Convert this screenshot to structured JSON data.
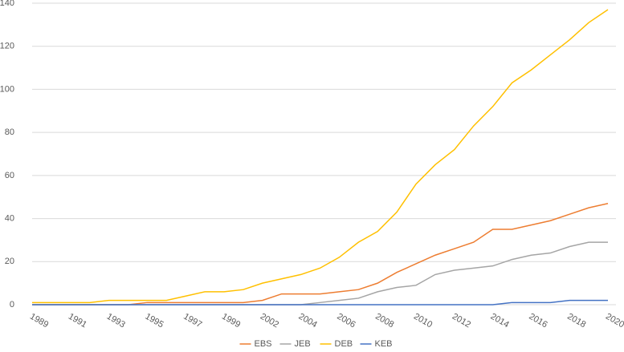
{
  "chart_data": {
    "type": "line",
    "categories": [
      "1989",
      null,
      "1991",
      null,
      "1993",
      null,
      "1995",
      null,
      "1997",
      null,
      "1999",
      null,
      "2002",
      null,
      "2004",
      null,
      "2006",
      null,
      "2008",
      null,
      "2010",
      null,
      "2012",
      null,
      "2014",
      null,
      "2016",
      null,
      "2018",
      null,
      "2020"
    ],
    "series": [
      {
        "name": "EBS",
        "color": "#ed7d31",
        "values": [
          0,
          0,
          0,
          0,
          0,
          0,
          1,
          1,
          1,
          1,
          1,
          1,
          2,
          5,
          5,
          5,
          6,
          7,
          10,
          15,
          19,
          23,
          26,
          29,
          35,
          35,
          37,
          39,
          42,
          45,
          47
        ]
      },
      {
        "name": "JEB",
        "color": "#a5a5a5",
        "values": [
          0,
          0,
          0,
          0,
          0,
          0,
          0,
          0,
          0,
          0,
          0,
          0,
          0,
          0,
          0,
          1,
          2,
          3,
          6,
          8,
          9,
          14,
          16,
          17,
          18,
          21,
          23,
          24,
          27,
          29,
          29
        ]
      },
      {
        "name": "DEB",
        "color": "#ffc000",
        "values": [
          1,
          1,
          1,
          1,
          2,
          2,
          2,
          2,
          4,
          6,
          6,
          7,
          10,
          12,
          14,
          17,
          22,
          29,
          34,
          43,
          56,
          65,
          72,
          83,
          92,
          103,
          109,
          116,
          123,
          131,
          137
        ]
      },
      {
        "name": "KEB",
        "color": "#4472c4",
        "values": [
          0,
          0,
          0,
          0,
          0,
          0,
          0,
          0,
          0,
          0,
          0,
          0,
          0,
          0,
          0,
          0,
          0,
          0,
          0,
          0,
          0,
          0,
          0,
          0,
          0,
          1,
          1,
          1,
          2,
          2,
          2
        ]
      }
    ],
    "ylim": [
      0,
      140
    ],
    "yticks": [
      0,
      20,
      40,
      60,
      80,
      100,
      120,
      140
    ],
    "grid": true,
    "legend": "bottom"
  }
}
